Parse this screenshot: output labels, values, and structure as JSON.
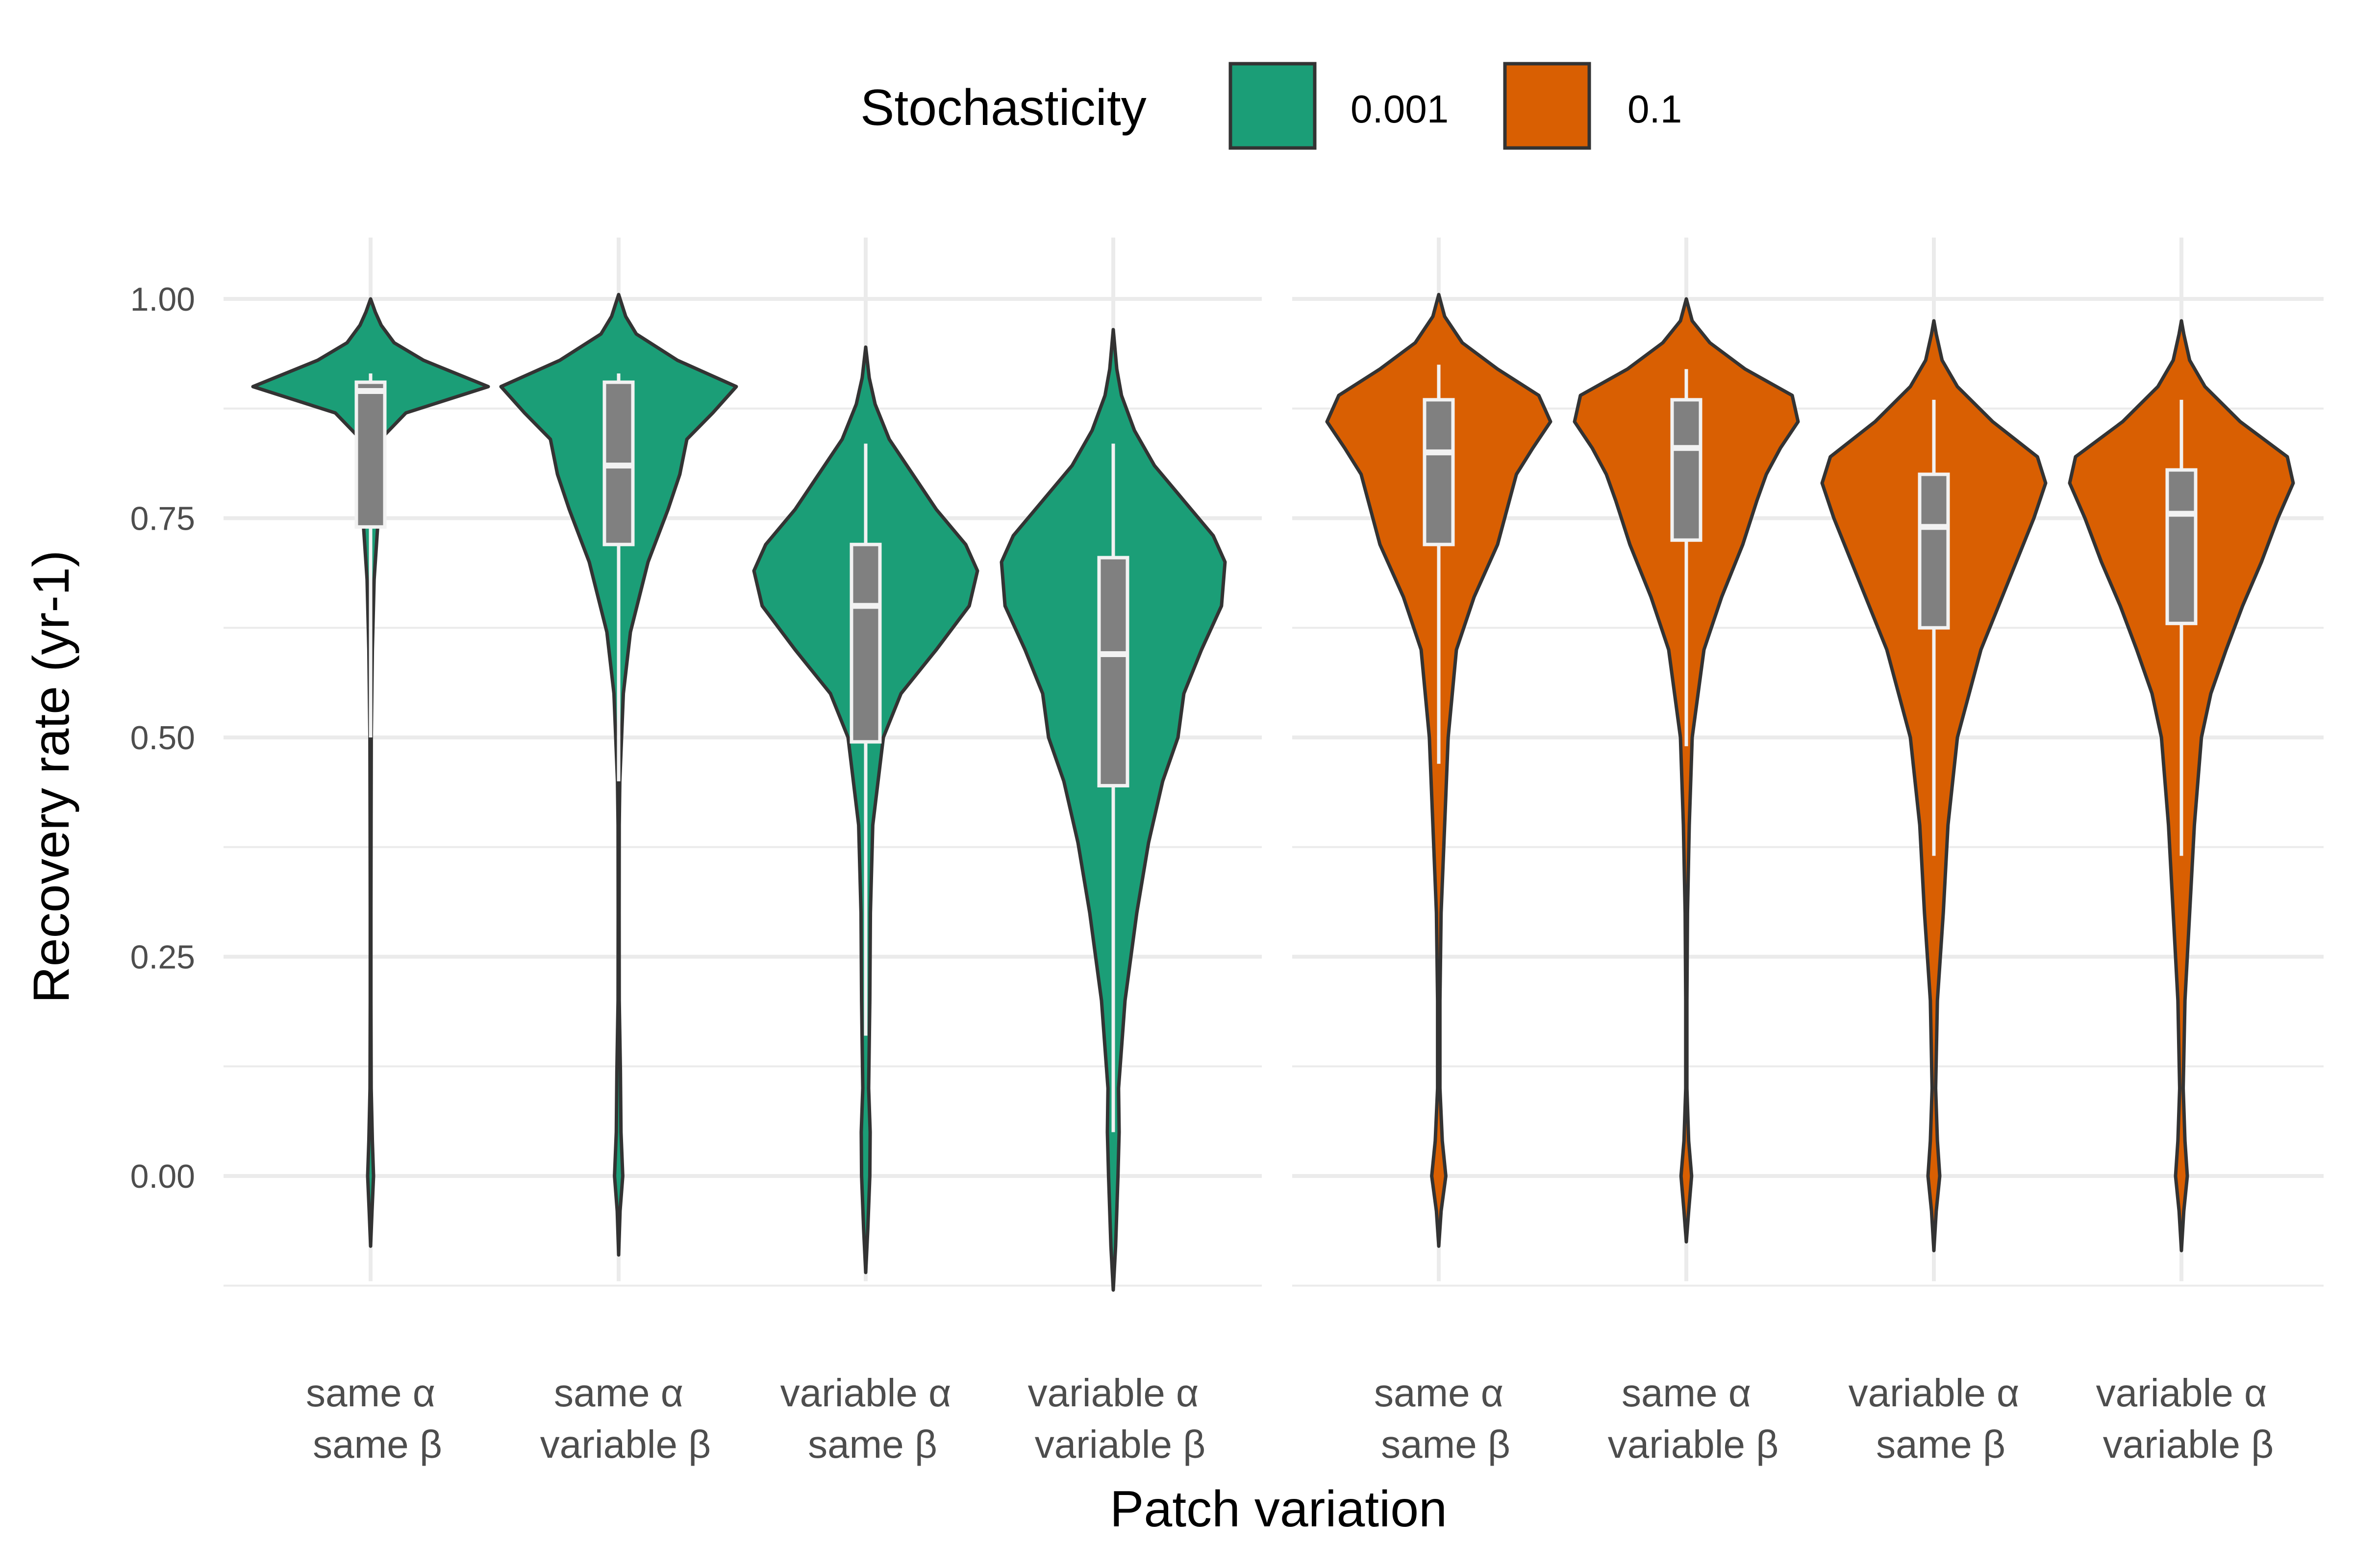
{
  "chart_data": {
    "type": "violin",
    "xlabel": "Patch variation",
    "ylabel": "Recovery rate (yr-1)",
    "ylim": [
      -0.12,
      1.07
    ],
    "yticks": [
      0.0,
      0.25,
      0.5,
      0.75,
      1.0
    ],
    "ytick_labels": [
      "0.00",
      "0.25",
      "0.50",
      "0.75",
      "1.00"
    ],
    "grid": true,
    "legend": {
      "title": "Stochasticity",
      "placement": "top",
      "entries": [
        {
          "label": "0.001",
          "color": "#1b9e77"
        },
        {
          "label": "0.1",
          "color": "#d95f02"
        }
      ]
    },
    "categories": [
      {
        "line1": "same α",
        "line2": "same β"
      },
      {
        "line1": "same α",
        "line2": "variable β"
      },
      {
        "line1": "variable α",
        "line2": "same β"
      },
      {
        "line1": "variable α",
        "line2": "variable β"
      }
    ],
    "panels": [
      {
        "stochasticity": "0.001",
        "color": "#1b9e77",
        "violins": [
          {
            "category": 0,
            "ymin": -0.08,
            "ymax": 1.0,
            "profile": [
              [
                -0.08,
                0.0
              ],
              [
                -0.04,
                0.012
              ],
              [
                0.0,
                0.025
              ],
              [
                0.04,
                0.015
              ],
              [
                0.1,
                0.005
              ],
              [
                0.2,
                0.003
              ],
              [
                0.3,
                0.003
              ],
              [
                0.4,
                0.004
              ],
              [
                0.5,
                0.006
              ],
              [
                0.6,
                0.015
              ],
              [
                0.68,
                0.03
              ],
              [
                0.74,
                0.06
              ],
              [
                0.8,
                0.08
              ],
              [
                0.845,
                0.12
              ],
              [
                0.87,
                0.3
              ],
              [
                0.9,
                1.0
              ],
              [
                0.93,
                0.45
              ],
              [
                0.95,
                0.2
              ],
              [
                0.97,
                0.09
              ],
              [
                0.985,
                0.04
              ],
              [
                1.0,
                0.0
              ]
            ],
            "box": {
              "q1": 0.74,
              "median": 0.895,
              "q3": 0.905,
              "whisker_low": 0.5,
              "whisker_high": 0.915
            }
          },
          {
            "category": 1,
            "ymin": -0.09,
            "ymax": 1.005,
            "profile": [
              [
                -0.09,
                0.0
              ],
              [
                -0.04,
                0.012
              ],
              [
                0.0,
                0.035
              ],
              [
                0.05,
                0.02
              ],
              [
                0.12,
                0.015
              ],
              [
                0.2,
                0.005
              ],
              [
                0.3,
                0.004
              ],
              [
                0.4,
                0.005
              ],
              [
                0.45,
                0.01
              ],
              [
                0.55,
                0.04
              ],
              [
                0.62,
                0.1
              ],
              [
                0.7,
                0.25
              ],
              [
                0.76,
                0.42
              ],
              [
                0.8,
                0.52
              ],
              [
                0.84,
                0.58
              ],
              [
                0.87,
                0.8
              ],
              [
                0.9,
                1.0
              ],
              [
                0.93,
                0.5
              ],
              [
                0.96,
                0.15
              ],
              [
                0.98,
                0.06
              ],
              [
                1.005,
                0.0
              ]
            ],
            "box": {
              "q1": 0.72,
              "median": 0.81,
              "q3": 0.905,
              "whisker_low": 0.45,
              "whisker_high": 0.915
            }
          },
          {
            "category": 2,
            "ymin": -0.11,
            "ymax": 0.945,
            "profile": [
              [
                -0.11,
                0.0
              ],
              [
                -0.06,
                0.018
              ],
              [
                0.0,
                0.035
              ],
              [
                0.05,
                0.038
              ],
              [
                0.1,
                0.025
              ],
              [
                0.2,
                0.035
              ],
              [
                0.3,
                0.04
              ],
              [
                0.4,
                0.06
              ],
              [
                0.5,
                0.15
              ],
              [
                0.55,
                0.3
              ],
              [
                0.6,
                0.6
              ],
              [
                0.65,
                0.88
              ],
              [
                0.69,
                0.95
              ],
              [
                0.72,
                0.85
              ],
              [
                0.76,
                0.6
              ],
              [
                0.8,
                0.4
              ],
              [
                0.84,
                0.2
              ],
              [
                0.88,
                0.08
              ],
              [
                0.91,
                0.03
              ],
              [
                0.945,
                0.0
              ]
            ],
            "box": {
              "q1": 0.495,
              "median": 0.65,
              "q3": 0.72,
              "whisker_low": 0.16,
              "whisker_high": 0.835
            }
          },
          {
            "category": 3,
            "ymin": -0.13,
            "ymax": 0.965,
            "profile": [
              [
                -0.13,
                0.0
              ],
              [
                -0.08,
                0.02
              ],
              [
                0.0,
                0.04
              ],
              [
                0.05,
                0.05
              ],
              [
                0.1,
                0.045
              ],
              [
                0.2,
                0.1
              ],
              [
                0.3,
                0.2
              ],
              [
                0.38,
                0.3
              ],
              [
                0.45,
                0.42
              ],
              [
                0.5,
                0.55
              ],
              [
                0.55,
                0.6
              ],
              [
                0.6,
                0.75
              ],
              [
                0.65,
                0.92
              ],
              [
                0.7,
                0.95
              ],
              [
                0.73,
                0.85
              ],
              [
                0.77,
                0.6
              ],
              [
                0.81,
                0.35
              ],
              [
                0.85,
                0.18
              ],
              [
                0.89,
                0.07
              ],
              [
                0.92,
                0.03
              ],
              [
                0.965,
                0.0
              ]
            ],
            "box": {
              "q1": 0.445,
              "median": 0.595,
              "q3": 0.705,
              "whisker_low": 0.05,
              "whisker_high": 0.835
            }
          }
        ]
      },
      {
        "stochasticity": "0.1",
        "color": "#d95f02",
        "violins": [
          {
            "category": 0,
            "ymin": -0.08,
            "ymax": 1.005,
            "profile": [
              [
                -0.08,
                0.0
              ],
              [
                -0.04,
                0.02
              ],
              [
                0.0,
                0.06
              ],
              [
                0.04,
                0.03
              ],
              [
                0.1,
                0.01
              ],
              [
                0.2,
                0.01
              ],
              [
                0.3,
                0.02
              ],
              [
                0.4,
                0.05
              ],
              [
                0.5,
                0.08
              ],
              [
                0.6,
                0.15
              ],
              [
                0.66,
                0.3
              ],
              [
                0.72,
                0.5
              ],
              [
                0.77,
                0.6
              ],
              [
                0.8,
                0.66
              ],
              [
                0.83,
                0.8
              ],
              [
                0.86,
                0.95
              ],
              [
                0.89,
                0.85
              ],
              [
                0.92,
                0.5
              ],
              [
                0.95,
                0.2
              ],
              [
                0.98,
                0.05
              ],
              [
                1.005,
                0.0
              ]
            ],
            "box": {
              "q1": 0.72,
              "median": 0.825,
              "q3": 0.885,
              "whisker_low": 0.47,
              "whisker_high": 0.925
            }
          },
          {
            "category": 1,
            "ymin": -0.075,
            "ymax": 1.0,
            "profile": [
              [
                -0.075,
                0.0
              ],
              [
                -0.04,
                0.02
              ],
              [
                0.0,
                0.045
              ],
              [
                0.04,
                0.02
              ],
              [
                0.1,
                0.005
              ],
              [
                0.2,
                0.005
              ],
              [
                0.3,
                0.01
              ],
              [
                0.4,
                0.025
              ],
              [
                0.5,
                0.05
              ],
              [
                0.6,
                0.15
              ],
              [
                0.66,
                0.3
              ],
              [
                0.72,
                0.48
              ],
              [
                0.77,
                0.6
              ],
              [
                0.8,
                0.68
              ],
              [
                0.83,
                0.8
              ],
              [
                0.86,
                0.95
              ],
              [
                0.89,
                0.9
              ],
              [
                0.92,
                0.5
              ],
              [
                0.95,
                0.2
              ],
              [
                0.975,
                0.05
              ],
              [
                1.0,
                0.0
              ]
            ],
            "box": {
              "q1": 0.725,
              "median": 0.83,
              "q3": 0.885,
              "whisker_low": 0.49,
              "whisker_high": 0.92
            }
          },
          {
            "category": 2,
            "ymin": -0.085,
            "ymax": 0.975,
            "profile": [
              [
                -0.085,
                0.0
              ],
              [
                -0.04,
                0.02
              ],
              [
                0.0,
                0.05
              ],
              [
                0.04,
                0.03
              ],
              [
                0.1,
                0.015
              ],
              [
                0.2,
                0.03
              ],
              [
                0.3,
                0.08
              ],
              [
                0.4,
                0.12
              ],
              [
                0.5,
                0.2
              ],
              [
                0.55,
                0.3
              ],
              [
                0.6,
                0.4
              ],
              [
                0.65,
                0.55
              ],
              [
                0.7,
                0.7
              ],
              [
                0.75,
                0.85
              ],
              [
                0.79,
                0.95
              ],
              [
                0.82,
                0.88
              ],
              [
                0.86,
                0.5
              ],
              [
                0.9,
                0.2
              ],
              [
                0.93,
                0.07
              ],
              [
                0.96,
                0.02
              ],
              [
                0.975,
                0.0
              ]
            ],
            "box": {
              "q1": 0.625,
              "median": 0.74,
              "q3": 0.8,
              "whisker_low": 0.365,
              "whisker_high": 0.885
            }
          },
          {
            "category": 3,
            "ymin": -0.085,
            "ymax": 0.975,
            "profile": [
              [
                -0.085,
                0.0
              ],
              [
                -0.04,
                0.02
              ],
              [
                0.0,
                0.05
              ],
              [
                0.04,
                0.03
              ],
              [
                0.1,
                0.015
              ],
              [
                0.2,
                0.03
              ],
              [
                0.3,
                0.07
              ],
              [
                0.4,
                0.11
              ],
              [
                0.5,
                0.17
              ],
              [
                0.55,
                0.25
              ],
              [
                0.6,
                0.38
              ],
              [
                0.65,
                0.52
              ],
              [
                0.7,
                0.68
              ],
              [
                0.75,
                0.82
              ],
              [
                0.79,
                0.95
              ],
              [
                0.82,
                0.9
              ],
              [
                0.86,
                0.5
              ],
              [
                0.9,
                0.2
              ],
              [
                0.93,
                0.07
              ],
              [
                0.96,
                0.02
              ],
              [
                0.975,
                0.0
              ]
            ],
            "box": {
              "q1": 0.63,
              "median": 0.755,
              "q3": 0.805,
              "whisker_low": 0.365,
              "whisker_high": 0.885
            }
          }
        ]
      }
    ]
  }
}
